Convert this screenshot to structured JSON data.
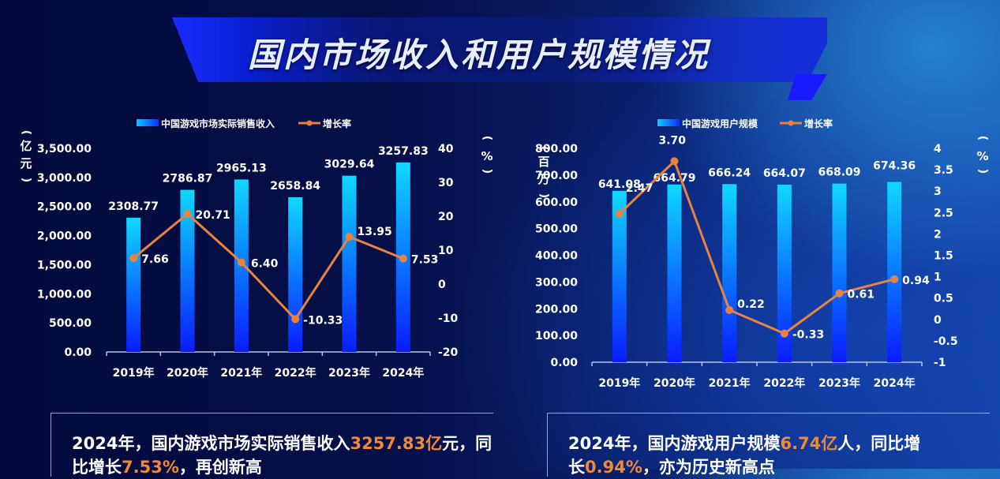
{
  "title": "国内市场收入和用户规模情况",
  "colors": {
    "bar_top": "#10d8ff",
    "bar_bottom": "#0a22ff",
    "line": "#e8833f",
    "highlight": "#f0883a",
    "axis": "#b8c4e8"
  },
  "chart_data": [
    {
      "type": "bar+line",
      "title": "中国游戏市场实际销售收入",
      "legend": [
        "中国游戏市场实际销售收入",
        "增长率"
      ],
      "legend_position": "top",
      "categories": [
        "2019年",
        "2020年",
        "2021年",
        "2022年",
        "2023年",
        "2024年"
      ],
      "series": [
        {
          "name": "中国游戏市场实际销售收入",
          "type": "bar",
          "axis": "left",
          "values": [
            2308.77,
            2786.87,
            2965.13,
            2658.84,
            3029.64,
            3257.83
          ]
        },
        {
          "name": "增长率",
          "type": "line",
          "axis": "right",
          "values": [
            7.66,
            20.71,
            6.4,
            -10.33,
            13.95,
            7.53
          ]
        }
      ],
      "ylabel": "（亿元）",
      "ylabel_right": "（%）",
      "ylim": [
        0,
        3500
      ],
      "ylim_right": [
        -20,
        40
      ],
      "yticks": [
        "3,500.00",
        "3,000.00",
        "2,500.00",
        "2,000.00",
        "1,500.00",
        "1,000.00",
        "500.00",
        "0.00"
      ],
      "yticks_right": [
        "40",
        "30",
        "20",
        "10",
        "0",
        "-10",
        "-20"
      ],
      "grid": false
    },
    {
      "type": "bar+line",
      "title": "中国游戏用户规模",
      "legend": [
        "中国游戏用户规模",
        "增长率"
      ],
      "legend_position": "top",
      "categories": [
        "2019年",
        "2020年",
        "2021年",
        "2022年",
        "2023年",
        "2024年"
      ],
      "series": [
        {
          "name": "中国游戏用户规模",
          "type": "bar",
          "axis": "left",
          "values": [
            641.08,
            664.79,
            666.24,
            664.07,
            668.09,
            674.36
          ]
        },
        {
          "name": "增长率",
          "type": "line",
          "axis": "right",
          "values": [
            2.47,
            3.7,
            0.22,
            -0.33,
            0.61,
            0.94
          ]
        }
      ],
      "ylabel": "（百万）",
      "ylabel_right": "（%）",
      "ylim": [
        0,
        800
      ],
      "ylim_right": [
        -1,
        4
      ],
      "yticks": [
        "800.00",
        "700.00",
        "600.00",
        "500.00",
        "400.00",
        "300.00",
        "200.00",
        "100.00",
        "0.00"
      ],
      "yticks_right": [
        "4",
        "3.5",
        "3",
        "2.5",
        "2",
        "1.5",
        "1",
        "0.5",
        "0",
        "-0.5",
        "-1"
      ],
      "grid": false
    }
  ],
  "panels": {
    "left": {
      "pre": "2024年，国内游戏市场实际销售收入",
      "hl1": "3257.83亿",
      "mid": "元，同比增长",
      "hl2": "7.53%",
      "post": "，再创新高"
    },
    "right": {
      "pre": "2024年，国内游戏用户规模",
      "hl1": "6.74亿",
      "mid": "人，同比增长",
      "hl2": "0.94%",
      "post": "，亦为历史新高点"
    }
  }
}
